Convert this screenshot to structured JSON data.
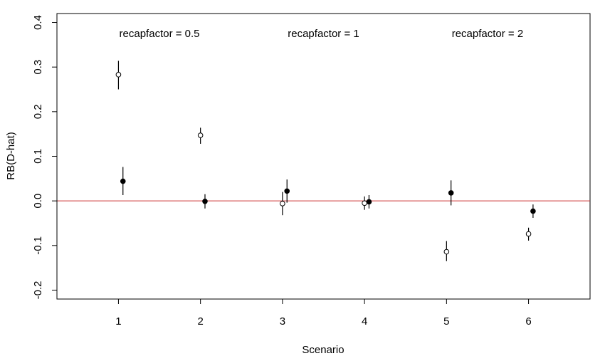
{
  "chart_data": {
    "type": "scatter",
    "xlabel": "Scenario",
    "ylabel": "RB(D-hat)",
    "x_ticks": [
      1,
      2,
      3,
      4,
      5,
      6
    ],
    "y_ticks": [
      "-0.2",
      "-0.1",
      "0.0",
      "0.1",
      "0.2",
      "0.3",
      "0.4"
    ],
    "xlim": [
      0.25,
      6.75
    ],
    "ylim": [
      -0.22,
      0.42
    ],
    "annotations": [
      {
        "text": "recapfactor = 0.5",
        "x": 1.5
      },
      {
        "text": "recapfactor = 1",
        "x": 3.5
      },
      {
        "text": "recapfactor = 2",
        "x": 5.5
      }
    ],
    "reference_line": {
      "y": 0.0,
      "color": "#cc3333"
    },
    "series": [
      {
        "marker": "open-circle",
        "points": [
          {
            "x": 1,
            "y": 0.283,
            "lo": 0.25,
            "hi": 0.314
          },
          {
            "x": 2,
            "y": 0.147,
            "lo": 0.128,
            "hi": 0.164
          },
          {
            "x": 3,
            "y": -0.006,
            "lo": -0.032,
            "hi": 0.02
          },
          {
            "x": 4,
            "y": -0.005,
            "lo": -0.02,
            "hi": 0.01
          },
          {
            "x": 5,
            "y": -0.114,
            "lo": -0.135,
            "hi": -0.09
          },
          {
            "x": 6,
            "y": -0.074,
            "lo": -0.089,
            "hi": -0.06
          }
        ]
      },
      {
        "marker": "filled-circle",
        "points": [
          {
            "x": 1,
            "y": 0.044,
            "lo": 0.013,
            "hi": 0.076
          },
          {
            "x": 2,
            "y": -0.001,
            "lo": -0.017,
            "hi": 0.015
          },
          {
            "x": 3,
            "y": 0.022,
            "lo": -0.004,
            "hi": 0.048
          },
          {
            "x": 4,
            "y": -0.002,
            "lo": -0.017,
            "hi": 0.013
          },
          {
            "x": 5,
            "y": 0.018,
            "lo": -0.01,
            "hi": 0.046
          },
          {
            "x": 6,
            "y": -0.023,
            "lo": -0.038,
            "hi": -0.008
          }
        ]
      }
    ]
  }
}
